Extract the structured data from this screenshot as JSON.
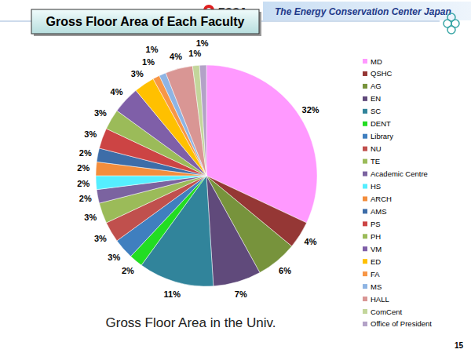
{
  "header": {
    "organization": "The Energy Conservation Center Japan",
    "logo": "ECCJ"
  },
  "page_number": 15,
  "chart_data": {
    "type": "pie",
    "title": "Gross Floor Area of Each Faculty",
    "subtitle": "Gross Floor Area in the Univ.",
    "categories": [
      "MD",
      "QSHC",
      "AG",
      "EN",
      "SC",
      "DENT",
      "Library",
      "NU",
      "TE",
      "Academic Centre",
      "HS",
      "ARCH",
      "AMS",
      "PS",
      "PH",
      "VM",
      "ED",
      "FA",
      "MS",
      "HALL",
      "ComCent",
      "Office of President"
    ],
    "values": [
      32,
      4,
      6,
      7,
      11,
      2,
      3,
      3,
      3,
      2,
      2,
      2,
      2,
      3,
      3,
      4,
      3,
      1,
      1,
      4,
      1,
      1
    ],
    "value_labels": [
      "32%",
      "4%",
      "6%",
      "7%",
      "11%",
      "2%",
      "3%",
      "3%",
      "3%",
      "2%",
      "2%",
      "2%",
      "2%",
      "3%",
      "3%",
      "4%",
      "3%",
      "1%",
      "1%",
      "4%",
      "1%",
      "1%"
    ],
    "colors": [
      "#ff99ff",
      "#953735",
      "#77933c",
      "#604a7b",
      "#31849b",
      "#22dd22",
      "#3f7fbf",
      "#c0504d",
      "#9bbb59",
      "#7b63a0",
      "#55eeff",
      "#f38d3c",
      "#3d6da8",
      "#cc4444",
      "#9bbb59",
      "#7f5fa8",
      "#ffc000",
      "#f79646",
      "#8eb4e3",
      "#d99694",
      "#c3d69b",
      "#b3a2c7"
    ],
    "data_labels": true,
    "legend": "right"
  }
}
